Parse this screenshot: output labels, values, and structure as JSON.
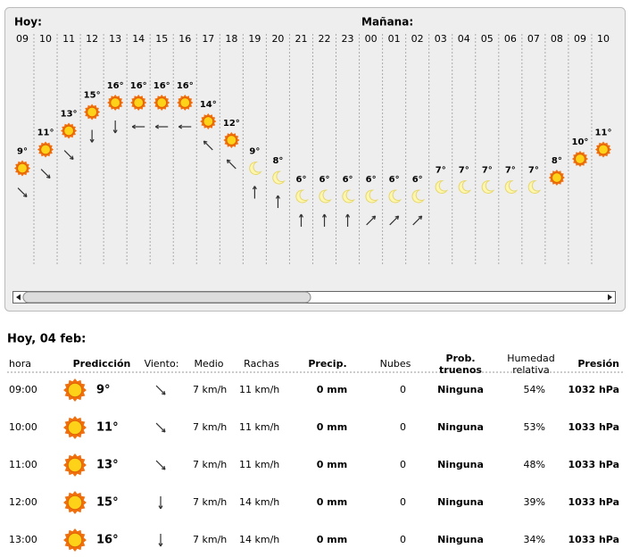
{
  "strip": {
    "today_label": "Hoy:",
    "tomorrow_label": "Mañana:",
    "hours": [
      "09",
      "10",
      "11",
      "12",
      "13",
      "14",
      "15",
      "16",
      "17",
      "18",
      "19",
      "20",
      "21",
      "22",
      "23",
      "00",
      "01",
      "02",
      "03",
      "04",
      "05",
      "06",
      "07",
      "08",
      "09",
      "10"
    ],
    "temps": [
      {
        "value": 9,
        "label": "9°"
      },
      {
        "value": 11,
        "label": "11°"
      },
      {
        "value": 13,
        "label": "13°"
      },
      {
        "value": 15,
        "label": "15°"
      },
      {
        "value": 16,
        "label": "16°"
      },
      {
        "value": 16,
        "label": "16°"
      },
      {
        "value": 16,
        "label": "16°"
      },
      {
        "value": 16,
        "label": "16°"
      },
      {
        "value": 14,
        "label": "14°"
      },
      {
        "value": 12,
        "label": "12°"
      },
      {
        "value": 9,
        "label": "9°"
      },
      {
        "value": 8,
        "label": "8°"
      },
      {
        "value": 6,
        "label": "6°"
      },
      {
        "value": 6,
        "label": "6°"
      },
      {
        "value": 6,
        "label": "6°"
      },
      {
        "value": 6,
        "label": "6°"
      },
      {
        "value": 6,
        "label": "6°"
      },
      {
        "value": 6,
        "label": "6°"
      },
      {
        "value": 7,
        "label": "7°"
      },
      {
        "value": 7,
        "label": "7°"
      },
      {
        "value": 7,
        "label": "7°"
      },
      {
        "value": 7,
        "label": "7°"
      },
      {
        "value": 7,
        "label": "7°"
      },
      {
        "value": 8,
        "label": "8°"
      },
      {
        "value": 10,
        "label": "10°"
      },
      {
        "value": 11,
        "label": "11°"
      }
    ]
  },
  "table": {
    "title": "Hoy, 04 feb:",
    "headers": [
      "hora",
      "Predicción",
      "Viento:",
      "Medio",
      "Rachas",
      "Precip.",
      "Nubes",
      "Prob. truenos",
      "Humedad relativa",
      "Presión"
    ],
    "rows": [
      [
        "09:00",
        "9°",
        "7 km/h",
        "11 km/h",
        "0 mm",
        "0",
        "Ninguna",
        "54%",
        "1032 hPa"
      ],
      [
        "10:00",
        "11°",
        "7 km/h",
        "11 km/h",
        "0 mm",
        "0",
        "Ninguna",
        "53%",
        "1033 hPa"
      ],
      [
        "11:00",
        "13°",
        "7 km/h",
        "11 km/h",
        "0 mm",
        "0",
        "Ninguna",
        "48%",
        "1033 hPa"
      ],
      [
        "12:00",
        "15°",
        "7 km/h",
        "14 km/h",
        "0 mm",
        "0",
        "Ninguna",
        "39%",
        "1033 hPa"
      ],
      [
        "13:00",
        "16°",
        "7 km/h",
        "14 km/h",
        "0 mm",
        "0",
        "Ninguna",
        "34%",
        "1033 hPa"
      ]
    ]
  }
}
